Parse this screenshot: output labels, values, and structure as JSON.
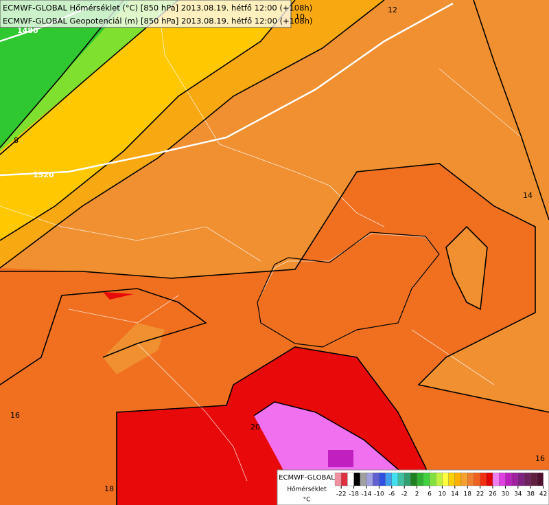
{
  "header": {
    "lines": [
      "ECMWF-GLOBAL Hőmérséklet (°C) [850 hPa] 2013.08.19. hétfő 12:00 (+108h)",
      "ECMWF-GLOBAL Geopotenciál (m) [850 hPa] 2013.08.19. hétfő 12:00 (+108h)"
    ]
  },
  "contour_labels": [
    "1480",
    "10",
    "12",
    "8",
    "1520",
    "14",
    "16",
    "20",
    "18",
    "16"
  ],
  "legend": {
    "title": "ECMWF-GLOBAL",
    "variable": "Hőmérséklet",
    "unit": "°C",
    "colors": [
      "#f090a0",
      "#e03040",
      "#ffffff",
      "#000000",
      "#a0a0a0",
      "#a0a0e0",
      "#6060d0",
      "#3050e0",
      "#40a0f0",
      "#40e0f0",
      "#40c0a0",
      "#30a070",
      "#208020",
      "#30b030",
      "#40d040",
      "#80e040",
      "#c0f040",
      "#ffff40",
      "#ffd000",
      "#ffb000",
      "#f8a030",
      "#f08030",
      "#f06020",
      "#f03010",
      "#e00000",
      "#f080f0",
      "#e040e0",
      "#c020c0",
      "#a020a0",
      "#802080",
      "#702060",
      "#602040",
      "#501030"
    ],
    "ticks": [
      -22,
      -18,
      -14,
      -10,
      -6,
      -2,
      2,
      6,
      10,
      14,
      18,
      22,
      26,
      30,
      34,
      38,
      42
    ]
  }
}
